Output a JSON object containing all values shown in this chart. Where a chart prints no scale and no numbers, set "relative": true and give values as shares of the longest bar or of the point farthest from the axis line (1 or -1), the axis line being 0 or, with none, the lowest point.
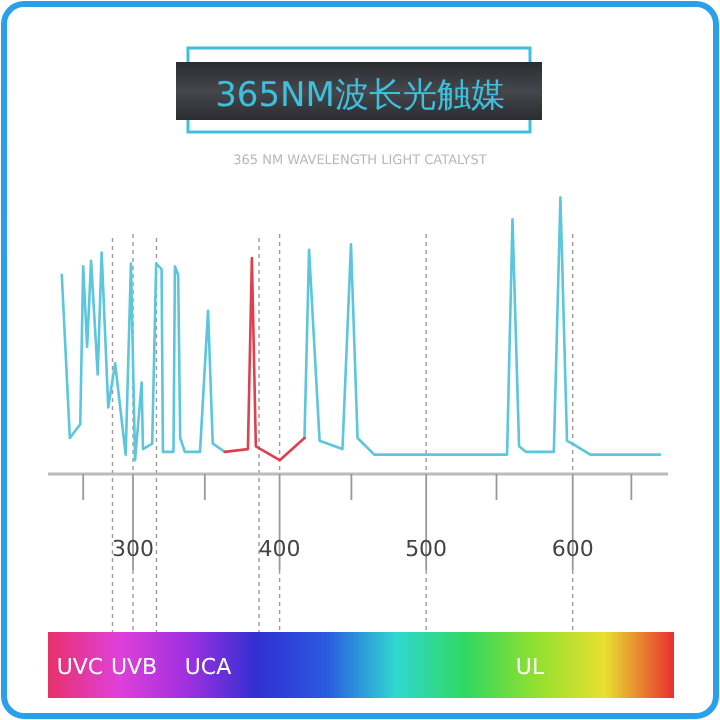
{
  "chart_data": {
    "type": "line",
    "title": "365NM波长光触媒",
    "subtitle": "365 NM WAVELENGTH LIGHT CATALYST",
    "relative": true,
    "series": [
      {
        "color": "#5bc6dc",
        "x": [
          251.4,
          256.9,
          264,
          266,
          268.7,
          271.4,
          275.9,
          278.6,
          283.1,
          287.8,
          295,
          298.6,
          301.4,
          305.9,
          306.8,
          313.1,
          315.8,
          319.5,
          320.4,
          327.6,
          328.6,
          330.8,
          332.2,
          335.4,
          345.7,
          351.2,
          354.4,
          362.6,
          390,
          417,
          420.1,
          427.3,
          442.9,
          448.7,
          453.2,
          464.6,
          555.2,
          558.9,
          563.4,
          568,
          587.1,
          591.6,
          596.1,
          599.7,
          612,
          659.6
        ],
        "values": [
          0.72,
          0.13,
          0.18,
          0.75,
          0.46,
          0.77,
          0.36,
          0.8,
          0.24,
          0.4,
          0.07,
          0.76,
          0.05,
          0.33,
          0.09,
          0.11,
          0.76,
          0.74,
          0.08,
          0.08,
          0.75,
          0.72,
          0.13,
          0.08,
          0.08,
          0.59,
          0.11,
          0.08,
          null,
          0.13,
          0.81,
          0.12,
          0.09,
          0.83,
          0.13,
          0.07,
          0.07,
          0.92,
          0.1,
          0.08,
          0.08,
          1,
          0.12,
          0.11,
          0.07,
          0.07
        ]
      },
      {
        "color": "#e0404e",
        "x": [
          362.6,
          378.4,
          381.1,
          383.8,
          400.1,
          417
        ],
        "values": [
          0.08,
          0.09,
          0.78,
          0.1,
          0.05,
          0.13
        ]
      }
    ],
    "xlim": [
      242,
      665
    ],
    "xticks": [
      {
        "value": 266,
        "label": null
      },
      300,
      {
        "value": 349,
        "label": null
      },
      400,
      {
        "value": 449,
        "label": null
      },
      500,
      {
        "value": 548,
        "label": null
      },
      600,
      {
        "value": 640,
        "label": null
      }
    ],
    "grid": "x",
    "ref_lines": [
      {
        "axis": "x",
        "value": 286,
        "line_style": "dotted"
      },
      {
        "axis": "x",
        "value": 316,
        "line_style": "dotted"
      },
      {
        "axis": "x",
        "value": 386,
        "line_style": "dotted"
      }
    ],
    "annotations": [
      "UVC",
      "UVB",
      "UCA",
      "UL"
    ]
  }
}
